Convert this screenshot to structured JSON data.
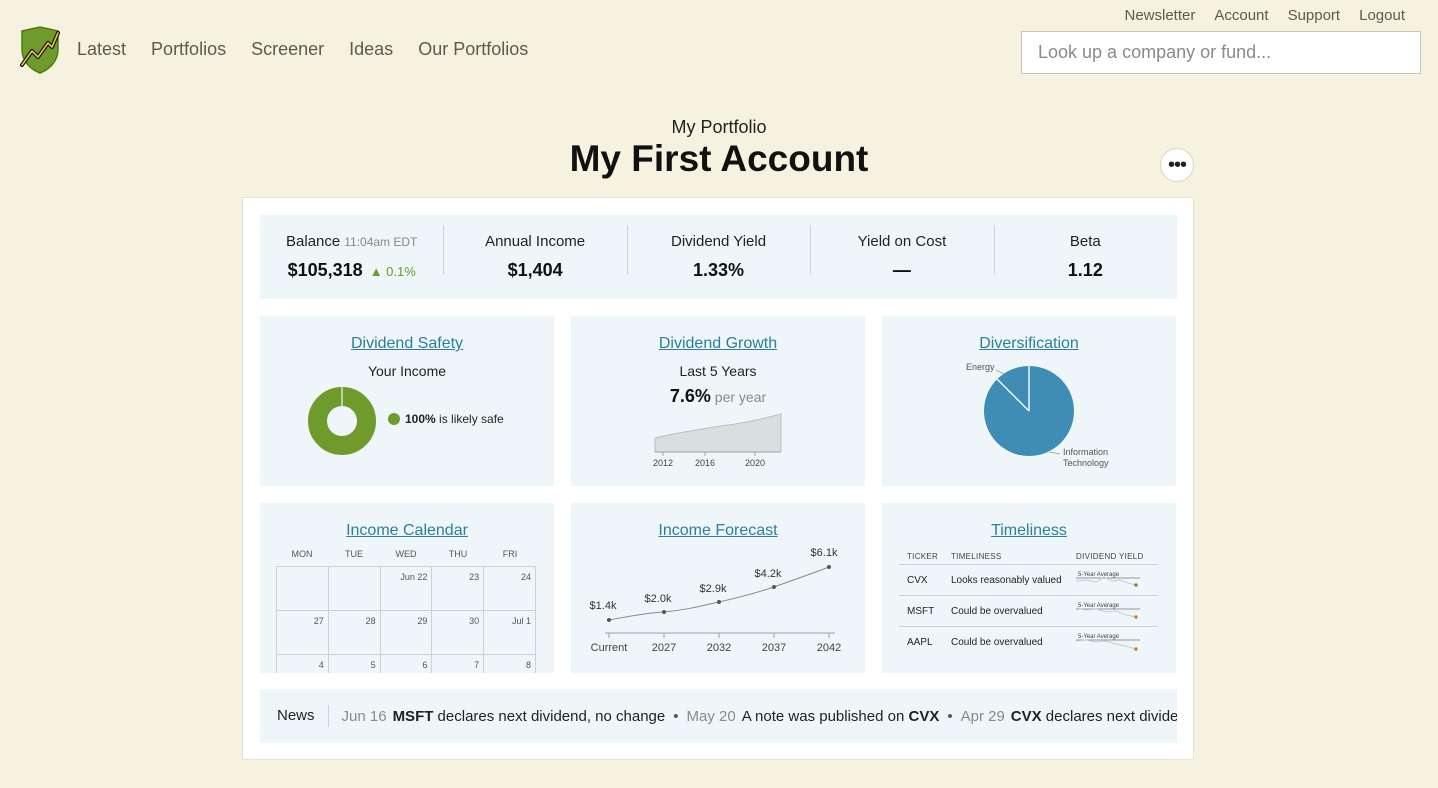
{
  "header": {
    "nav": [
      "Latest",
      "Portfolios",
      "Screener",
      "Ideas",
      "Our Portfolios"
    ],
    "util": [
      "Newsletter",
      "Account",
      "Support",
      "Logout"
    ],
    "search_placeholder": "Look up a company or fund...",
    "logo_icon": "shield-chart-logo"
  },
  "title": {
    "subtitle": "My Portfolio",
    "name": "My First Account",
    "more_label": "•••"
  },
  "stats": {
    "balance": {
      "label": "Balance",
      "time": "11:04am EDT",
      "value": "$105,318",
      "delta": "▲ 0.1%"
    },
    "annual_income": {
      "label": "Annual Income",
      "value": "$1,404"
    },
    "dividend_yield": {
      "label": "Dividend Yield",
      "value": "1.33%"
    },
    "yield_on_cost": {
      "label": "Yield on Cost",
      "value": "—"
    },
    "beta": {
      "label": "Beta",
      "value": "1.12"
    }
  },
  "safety": {
    "title": "Dividend Safety",
    "subtitle": "Your Income",
    "pct": "100%",
    "text": " is likely safe",
    "color": "#6e9b2b"
  },
  "growth": {
    "title": "Dividend Growth",
    "subtitle": "Last 5 Years",
    "value": "7.6%",
    "unit": " per year",
    "axis": [
      "2012",
      "2016",
      "2020"
    ]
  },
  "diversification": {
    "title": "Diversification",
    "labels": [
      "Energy",
      "Information",
      "Technology"
    ],
    "color": "#3f8db4"
  },
  "calendar": {
    "title": "Income Calendar",
    "days": [
      "MON",
      "TUE",
      "WED",
      "THU",
      "FRI"
    ],
    "cells": [
      "",
      "",
      "Jun 22",
      "23",
      "24",
      "27",
      "28",
      "29",
      "30",
      "Jul 1",
      "4",
      "5",
      "6",
      "7",
      "8"
    ]
  },
  "forecast": {
    "title": "Income Forecast",
    "labels": [
      "$1.4k",
      "$2.0k",
      "$2.9k",
      "$4.2k",
      "$6.1k"
    ],
    "axis": [
      "Current",
      "2027",
      "2032",
      "2037",
      "2042"
    ]
  },
  "timeliness": {
    "title": "Timeliness",
    "headers": [
      "TICKER",
      "TIMELINESS",
      "DIVIDEND YIELD"
    ],
    "rows": [
      {
        "ticker": "CVX",
        "status": "Looks reasonably valued",
        "label": "5-Year Average"
      },
      {
        "ticker": "MSFT",
        "status": "Could be overvalued",
        "label": "5-Year Average"
      },
      {
        "ticker": "AAPL",
        "status": "Could be overvalued",
        "label": "5-Year Average"
      }
    ]
  },
  "news": {
    "label": "News",
    "items": [
      {
        "date": "Jun 16",
        "pre": "",
        "bold": "MSFT",
        "post": " declares next dividend, no change"
      },
      {
        "date": "May 20",
        "pre": "A note was published on ",
        "bold": "CVX",
        "post": ""
      },
      {
        "date": "Apr 29",
        "pre": "",
        "bold": "CVX",
        "post": " declares next dividend..."
      }
    ],
    "separator": "•"
  }
}
